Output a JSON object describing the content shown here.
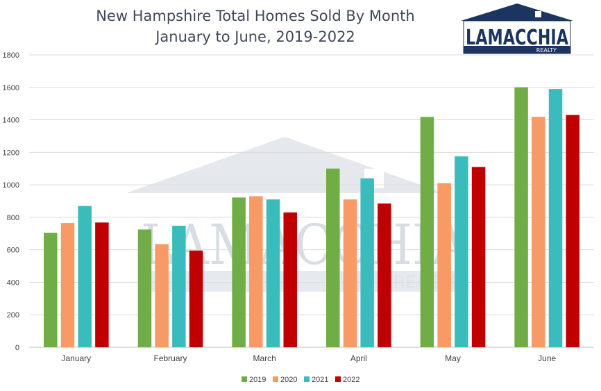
{
  "chart_data": {
    "type": "bar",
    "title": "New Hampshire Total Homes Sold By Month",
    "subtitle": "January to June, 2019-2022",
    "xlabel": "",
    "ylabel": "",
    "categories": [
      "January",
      "February",
      "March",
      "April",
      "May",
      "June"
    ],
    "ylim": [
      0,
      1800
    ],
    "yticks": [
      0,
      200,
      400,
      600,
      800,
      1000,
      1200,
      1400,
      1600,
      1800
    ],
    "grid": true,
    "legend_position": "bottom",
    "series": [
      {
        "name": "2019",
        "color": "#70ad47",
        "values": [
          705,
          725,
          922,
          1100,
          1418,
          1600
        ]
      },
      {
        "name": "2020",
        "color": "#f79a65",
        "values": [
          765,
          635,
          930,
          910,
          1010,
          1418
        ]
      },
      {
        "name": "2021",
        "color": "#3bbcbc",
        "values": [
          870,
          748,
          910,
          1040,
          1175,
          1590
        ]
      },
      {
        "name": "2022",
        "color": "#c00000",
        "values": [
          768,
          595,
          830,
          885,
          1110,
          1430
        ]
      }
    ]
  },
  "logo": {
    "name": "LAMACCHIA",
    "sub": "REALTY",
    "color": "#1c3560",
    "icon": "house-logo-icon"
  },
  "watermark": {
    "name": "LAMACCHIA",
    "sub": "REALTY",
    "icon": "house-watermark-icon"
  }
}
